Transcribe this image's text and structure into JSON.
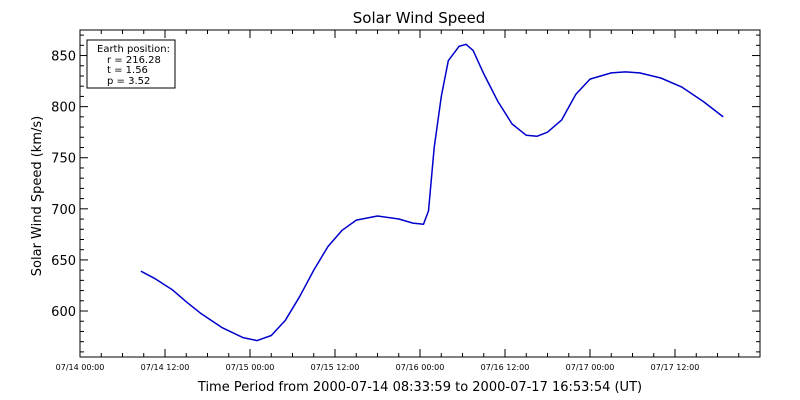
{
  "chart_data": {
    "type": "line",
    "title": "Solar Wind Speed",
    "xlabel": "Time Period from 2000-07-14 08:33:59 to 2000-07-17 16:53:54 (UT)",
    "ylabel": "Solar Wind Speed (km/s)",
    "x_unit": "hours",
    "xlim": [
      0,
      96
    ],
    "ylim": [
      555,
      875
    ],
    "x_tick_values": [
      0,
      12,
      24,
      36,
      48,
      60,
      72,
      84
    ],
    "x_tick_labels": [
      "07/14 00:00",
      "07/14 12:00",
      "07/15 00:00",
      "07/15 12:00",
      "07/16 00:00",
      "07/16 12:00",
      "07/17 00:00",
      "07/17 12:00"
    ],
    "y_ticks": [
      600,
      650,
      700,
      750,
      800,
      850
    ],
    "y_minor_step": 10,
    "x_minor_step": 3,
    "grid": false,
    "series": [
      {
        "color": "#0000cc",
        "x": [
          8.6,
          10.5,
          13,
          15,
          17,
          20,
          23,
          25,
          27,
          29,
          31,
          33,
          35,
          37,
          39,
          42,
          45,
          47,
          48.5,
          49.2,
          50,
          51,
          52,
          53.5,
          54.5,
          55.5,
          57,
          59,
          61,
          63,
          64.5,
          66,
          68,
          70,
          72,
          75,
          77,
          79,
          82,
          85,
          88,
          90.8
        ],
        "y": [
          639,
          632,
          621,
          609,
          598,
          584,
          574,
          571,
          576,
          591,
          614,
          640,
          663,
          679,
          689,
          693,
          690,
          686,
          685,
          698,
          760,
          810,
          845,
          859,
          861,
          855,
          832,
          805,
          783,
          772,
          771,
          775,
          787,
          812,
          827,
          833,
          834,
          833,
          828,
          819,
          805,
          790
        ]
      }
    ],
    "legend": {
      "placement": "top-left",
      "lines": [
        "Earth position:",
        "r = 216.28",
        "t = 1.56",
        "p = 3.52"
      ]
    }
  }
}
